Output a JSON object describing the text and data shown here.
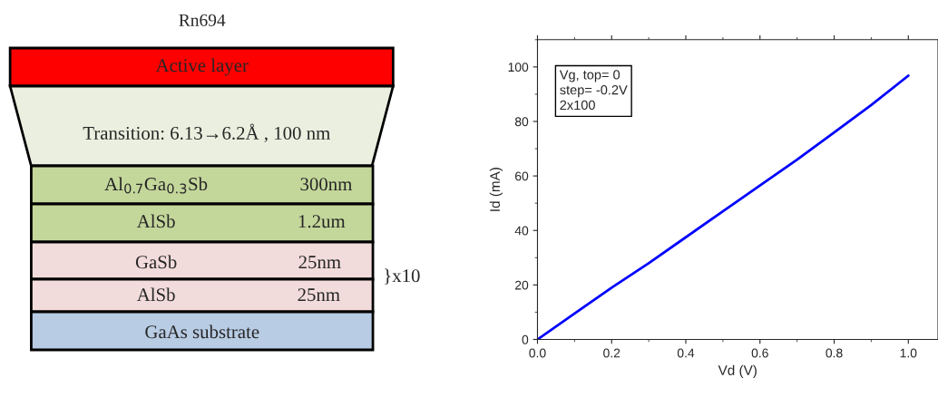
{
  "chart_data": [
    {
      "type": "other",
      "title": "Rn694",
      "annotations": [
        "Active layer",
        "Transition: 6.13→6.2Å , 100 nm",
        "Al$_{0.7}$Ga$_{0.3}$Sb",
        "300nm",
        "AlSb",
        "1.2um",
        "GaSb",
        "25nm",
        "AlSb",
        "25nm",
        "GaAs substrate",
        "}x10"
      ]
    },
    {
      "type": "line",
      "xlabel": "Vd (V)",
      "ylabel": "Id (mA)",
      "x": [
        0,
        0.1,
        0.2,
        0.3,
        0.4,
        0.5,
        0.6,
        0.7,
        0.8,
        0.9,
        1.0
      ],
      "series": [
        {
          "color": "#0000ff",
          "values": [
            0,
            9.5,
            19,
            28,
            37.5,
            47,
            56.5,
            66,
            76,
            86,
            96.8
          ]
        }
      ],
      "xlim": [
        0,
        1.08
      ],
      "xticks": [
        {
          "value": 0,
          "label": "0.0"
        },
        0.2,
        0.4,
        0.6,
        0.8,
        {
          "value": 1.0,
          "label": "1.0"
        }
      ],
      "ylim": [
        0,
        110
      ],
      "yticks": [
        0,
        20,
        40,
        60,
        80,
        100
      ],
      "annotations": [
        "Vg, top= 0\nstep= -0.2V\n2x100"
      ],
      "grid": false,
      "legend": false
    }
  ]
}
